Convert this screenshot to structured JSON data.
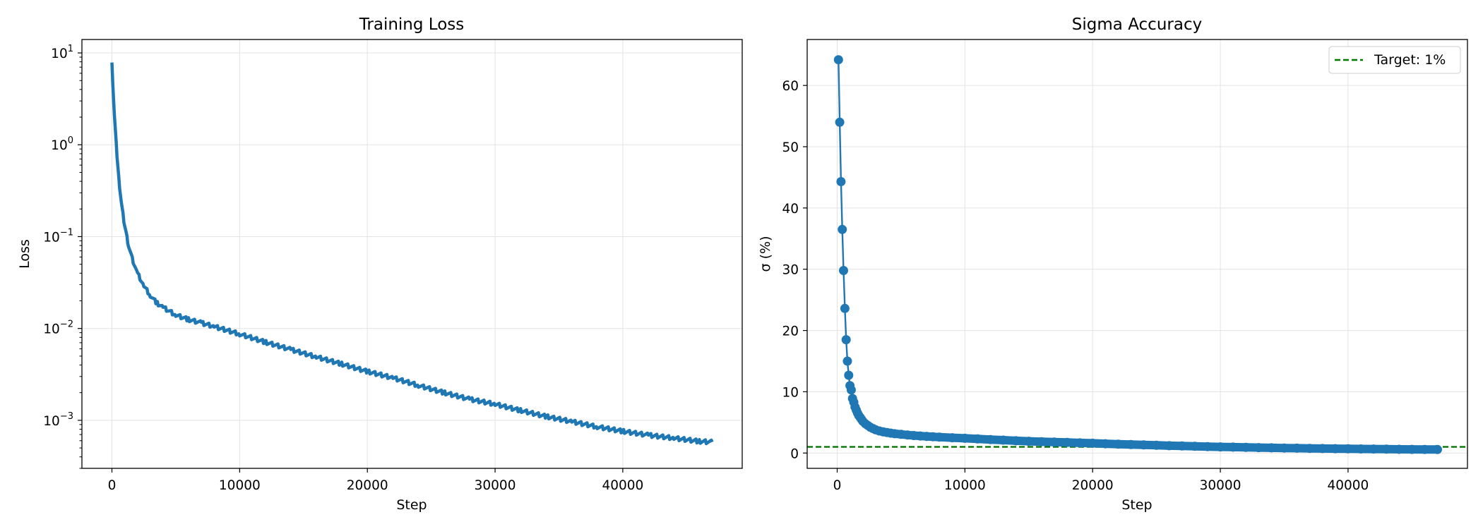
{
  "chart_data": [
    {
      "type": "line",
      "title": "Training Loss",
      "xlabel": "Step",
      "ylabel": "Loss",
      "yscale": "log",
      "xlim": [
        -2350,
        49350
      ],
      "ylim": [
        0.0003,
        14
      ],
      "xticks": [
        0,
        10000,
        20000,
        30000,
        40000
      ],
      "xtick_labels": [
        "0",
        "10000",
        "20000",
        "30000",
        "40000"
      ],
      "yticks": [
        0.001,
        0.01,
        0.1,
        1,
        10
      ],
      "ytick_labels": [
        {
          "base": "10",
          "exp": "−3"
        },
        {
          "base": "10",
          "exp": "−2"
        },
        {
          "base": "10",
          "exp": "−1"
        },
        {
          "base": "10",
          "exp": "0"
        },
        {
          "base": "10",
          "exp": "1"
        }
      ],
      "grid": true,
      "series": [
        {
          "color": "#1f77b4",
          "x": [
            0,
            200,
            400,
            600,
            800,
            1000,
            1300,
            1600,
            2000,
            2500,
            3000,
            3500,
            4000,
            5000,
            6000,
            7000,
            8000,
            10000,
            12000,
            14000,
            16000,
            18000,
            20000,
            22000,
            24000,
            26000,
            28000,
            30000,
            32000,
            34000,
            36000,
            38000,
            40000,
            42000,
            44000,
            46000,
            47000
          ],
          "y": [
            7.5,
            2.0,
            0.75,
            0.35,
            0.2,
            0.13,
            0.08,
            0.057,
            0.04,
            0.029,
            0.023,
            0.019,
            0.017,
            0.014,
            0.0125,
            0.0115,
            0.0105,
            0.0087,
            0.0071,
            0.0059,
            0.0049,
            0.0041,
            0.0034,
            0.0029,
            0.0024,
            0.002,
            0.0017,
            0.0015,
            0.00128,
            0.0011,
            0.00097,
            0.00085,
            0.00076,
            0.00069,
            0.00064,
            0.00059,
            0.00058
          ]
        }
      ]
    },
    {
      "type": "line",
      "title": "Sigma Accuracy",
      "xlabel": "Step",
      "ylabel": "σ (%)",
      "xlim": [
        -2350,
        49350
      ],
      "ylim": [
        -2.5,
        67.5
      ],
      "xticks": [
        0,
        10000,
        20000,
        30000,
        40000
      ],
      "xtick_labels": [
        "0",
        "10000",
        "20000",
        "30000",
        "40000"
      ],
      "yticks": [
        0,
        10,
        20,
        30,
        40,
        50,
        60
      ],
      "ytick_labels": [
        "0",
        "10",
        "20",
        "30",
        "40",
        "50",
        "60"
      ],
      "grid": true,
      "legend": {
        "placement": "top-right",
        "entries": [
          {
            "label": "Target: 1%",
            "color": "#007700",
            "style": "dashed"
          }
        ]
      },
      "target_line": {
        "y": 1.0,
        "color": "#007700"
      },
      "series": [
        {
          "color": "#1f77b4",
          "marker": "circle",
          "x": [
            100,
            200,
            300,
            400,
            500,
            600,
            700,
            800,
            900,
            1000,
            1100,
            1200,
            1300,
            1400,
            1500,
            1600,
            1700,
            1800,
            1900,
            2000,
            2200,
            2400,
            2600,
            2800,
            3000,
            3300,
            3600,
            3900,
            4200,
            4500,
            5000,
            5500,
            6000,
            6500,
            7000,
            7500,
            8000,
            9000,
            10000,
            11000,
            12000,
            13000,
            14000,
            15000,
            16000,
            17000,
            18000,
            19000,
            20000,
            21000,
            22000,
            23000,
            24000,
            25000,
            26000,
            27000,
            28000,
            29000,
            30000,
            31000,
            32000,
            33000,
            34000,
            35000,
            36000,
            37000,
            38000,
            39000,
            40000,
            41000,
            42000,
            43000,
            44000,
            45000,
            46000,
            47000
          ],
          "y": [
            64.2,
            54.0,
            44.3,
            36.5,
            29.8,
            23.6,
            18.5,
            15.0,
            12.7,
            11.0,
            10.3,
            8.9,
            8.3,
            7.5,
            7.0,
            6.5,
            6.1,
            5.8,
            5.5,
            5.2,
            4.8,
            4.5,
            4.2,
            4.0,
            3.8,
            3.6,
            3.45,
            3.35,
            3.25,
            3.15,
            3.05,
            2.95,
            2.85,
            2.78,
            2.72,
            2.66,
            2.6,
            2.5,
            2.4,
            2.3,
            2.2,
            2.1,
            2.0,
            1.92,
            1.85,
            1.78,
            1.72,
            1.66,
            1.6,
            1.52,
            1.45,
            1.38,
            1.32,
            1.26,
            1.2,
            1.15,
            1.1,
            1.05,
            1.0,
            0.96,
            0.92,
            0.88,
            0.85,
            0.82,
            0.79,
            0.76,
            0.73,
            0.71,
            0.69,
            0.67,
            0.65,
            0.63,
            0.61,
            0.6,
            0.58,
            0.57
          ]
        }
      ]
    }
  ]
}
